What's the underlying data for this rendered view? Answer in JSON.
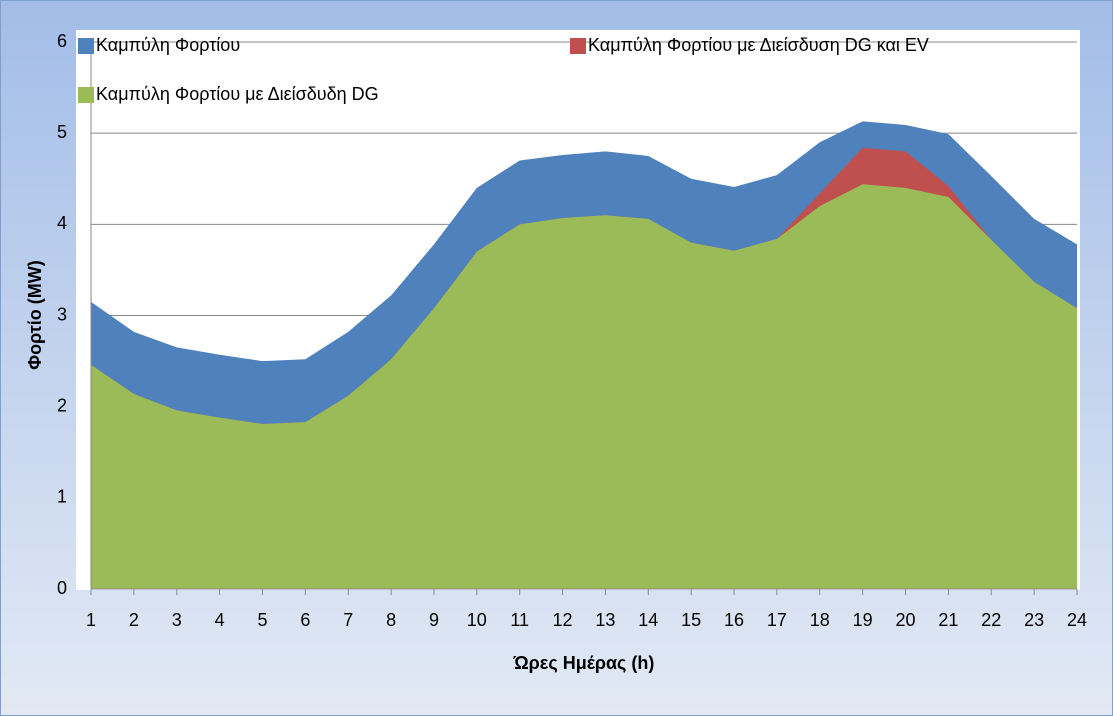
{
  "chart_data": {
    "type": "area",
    "ylabel": "Φορτίο (MW)",
    "xlabel": "Ώρες Ημέρας (h)",
    "categories": [
      "1",
      "2",
      "3",
      "4",
      "5",
      "6",
      "7",
      "8",
      "9",
      "10",
      "11",
      "12",
      "13",
      "14",
      "15",
      "16",
      "17",
      "18",
      "19",
      "20",
      "21",
      "22",
      "23",
      "24"
    ],
    "series": [
      {
        "name": "Καμπύλη Φορτίου",
        "color": "#4f81bd",
        "values": [
          3.15,
          2.82,
          2.65,
          2.57,
          2.5,
          2.52,
          2.82,
          3.22,
          3.78,
          4.4,
          4.7,
          4.76,
          4.8,
          4.75,
          4.5,
          4.41,
          4.54,
          4.9,
          5.13,
          5.09,
          4.99,
          4.53,
          4.06,
          3.78
        ]
      },
      {
        "name": "Καμπύλη Φορτίου με Διείσδυση DG και EV",
        "color": "#c0504d",
        "values": [
          2.46,
          2.14,
          1.96,
          1.88,
          1.81,
          1.83,
          2.12,
          2.52,
          3.08,
          3.7,
          4.0,
          4.07,
          4.1,
          4.06,
          3.8,
          3.71,
          3.84,
          4.34,
          4.84,
          4.8,
          4.42,
          3.83,
          3.37,
          3.08
        ]
      },
      {
        "name": "Καμπύλη Φορτίου με Διείσδυδη DG",
        "color": "#9bbb59",
        "values": [
          2.46,
          2.14,
          1.96,
          1.88,
          1.81,
          1.83,
          2.12,
          2.52,
          3.08,
          3.7,
          4.0,
          4.07,
          4.1,
          4.06,
          3.8,
          3.71,
          3.84,
          4.2,
          4.44,
          4.4,
          4.3,
          3.83,
          3.37,
          3.08
        ]
      }
    ],
    "ylim": [
      0,
      6
    ],
    "yticks": [
      0,
      1,
      2,
      3,
      4,
      5,
      6
    ],
    "grid": true
  }
}
